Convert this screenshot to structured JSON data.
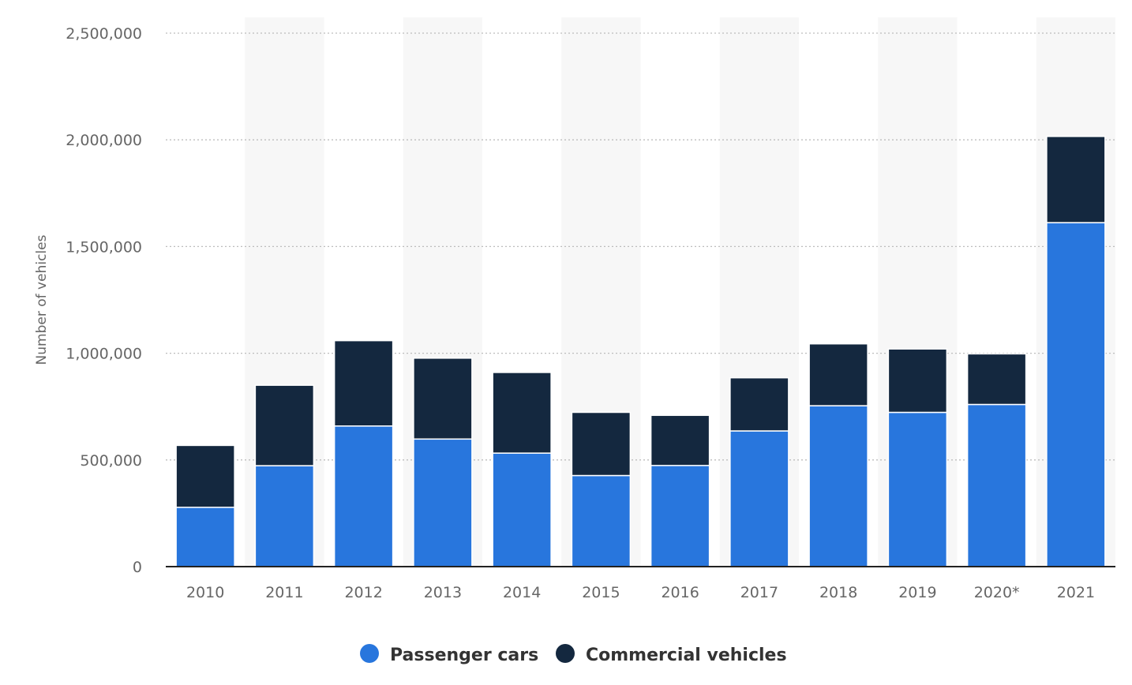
{
  "chart_data": {
    "type": "bar",
    "stacked": true,
    "categories": [
      "2010",
      "2011",
      "2012",
      "2013",
      "2014",
      "2015",
      "2016",
      "2017",
      "2018",
      "2019",
      "2020*",
      "2021"
    ],
    "series": [
      {
        "name": "Passenger cars",
        "color": "#2876dd",
        "values": [
          278000,
          473000,
          659000,
          598000,
          532000,
          427000,
          474000,
          636000,
          754000,
          723000,
          760000,
          1612000
        ]
      },
      {
        "name": "Commercial vehicles",
        "color": "#14283f",
        "values": [
          290000,
          377000,
          400000,
          379000,
          378000,
          296000,
          235000,
          249000,
          290000,
          297000,
          237000,
          404000
        ]
      }
    ],
    "ylabel": "Number of vehicles",
    "xlabel": "",
    "ylim": [
      0,
      2500000
    ],
    "yticks": [
      0,
      500000,
      1000000,
      1500000,
      2000000,
      2500000
    ],
    "ytick_labels": [
      "0",
      "500,000",
      "1,000,000",
      "1,500,000",
      "2,000,000",
      "2,500,000"
    ],
    "grid": "horizontal dotted",
    "legend_position": "bottom-center"
  }
}
